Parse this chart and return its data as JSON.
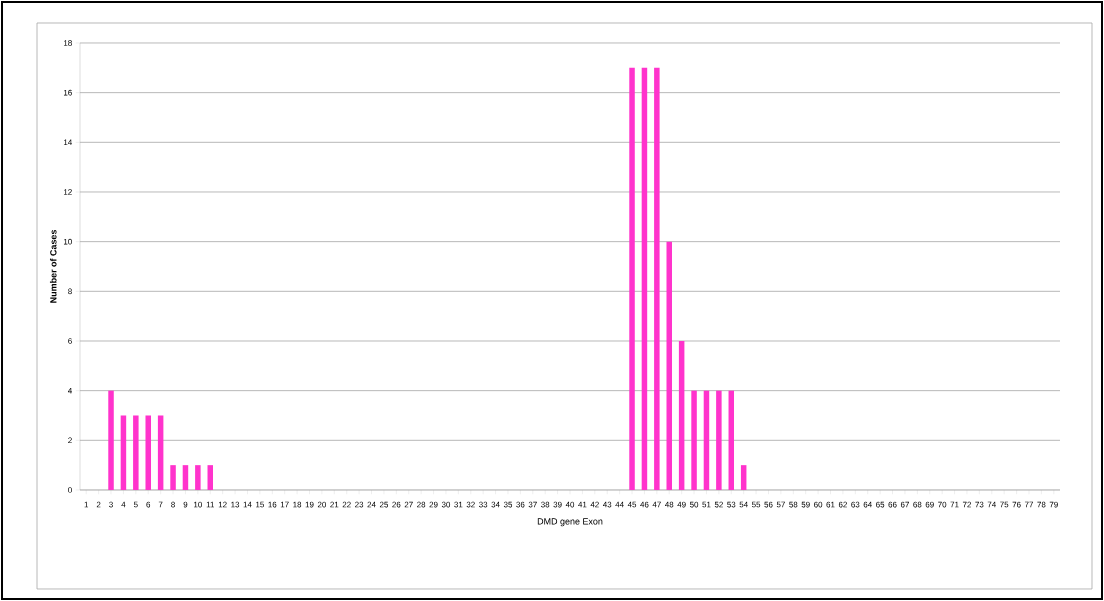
{
  "chart_data": {
    "type": "bar",
    "xlabel": "DMD gene Exon",
    "ylabel": "Number of Cases",
    "categories": [
      "1",
      "2",
      "3",
      "4",
      "5",
      "6",
      "7",
      "8",
      "9",
      "10",
      "11",
      "12",
      "13",
      "14",
      "15",
      "16",
      "17",
      "18",
      "19",
      "20",
      "21",
      "22",
      "23",
      "24",
      "25",
      "26",
      "27",
      "28",
      "29",
      "30",
      "31",
      "32",
      "33",
      "34",
      "35",
      "36",
      "37",
      "38",
      "39",
      "40",
      "41",
      "42",
      "43",
      "44",
      "45",
      "46",
      "47",
      "48",
      "49",
      "50",
      "51",
      "52",
      "53",
      "54",
      "55",
      "56",
      "57",
      "58",
      "59",
      "60",
      "61",
      "62",
      "63",
      "64",
      "65",
      "66",
      "67",
      "68",
      "69",
      "70",
      "71",
      "72",
      "73",
      "74",
      "75",
      "76",
      "77",
      "78",
      "79"
    ],
    "values": [
      0,
      0,
      4,
      3,
      3,
      3,
      3,
      1,
      1,
      1,
      1,
      0,
      0,
      0,
      0,
      0,
      0,
      0,
      0,
      0,
      0,
      0,
      0,
      0,
      0,
      0,
      0,
      0,
      0,
      0,
      0,
      0,
      0,
      0,
      0,
      0,
      0,
      0,
      0,
      0,
      0,
      0,
      0,
      0,
      17,
      17,
      17,
      10,
      6,
      4,
      4,
      4,
      4,
      1,
      0,
      0,
      0,
      0,
      0,
      0,
      0,
      0,
      0,
      0,
      0,
      0,
      0,
      0,
      0,
      0,
      0,
      0,
      0,
      0,
      0,
      0,
      0,
      0,
      0
    ],
    "color": "#ff33cc",
    "ylim": [
      0,
      18
    ],
    "yticks": [
      0,
      2,
      4,
      6,
      8,
      10,
      12,
      14,
      16,
      18
    ],
    "grid": "y"
  }
}
